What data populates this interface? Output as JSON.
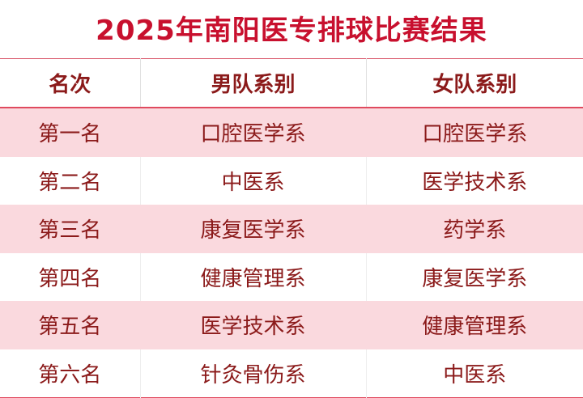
{
  "title": "2025年南阳医专排球比赛结果",
  "headers": [
    "名次",
    "男队系别",
    "女队系别"
  ],
  "rows": [
    [
      "第一名",
      "口腔医学系",
      "口腔医学系"
    ],
    [
      "第二名",
      "中医系",
      "医学技术系"
    ],
    [
      "第三名",
      "康复医学系",
      "药学系"
    ],
    [
      "第四名",
      "健康管理系",
      "康复医学系"
    ],
    [
      "第五名",
      "医学技术系",
      "健康管理系"
    ],
    [
      "第六名",
      "针灸骨伤系",
      "中医系"
    ]
  ],
  "colors": {
    "title": "#c8102e",
    "text": "#8b1a1a",
    "stripe": "#fad9de",
    "rule": "#e04a5e"
  }
}
